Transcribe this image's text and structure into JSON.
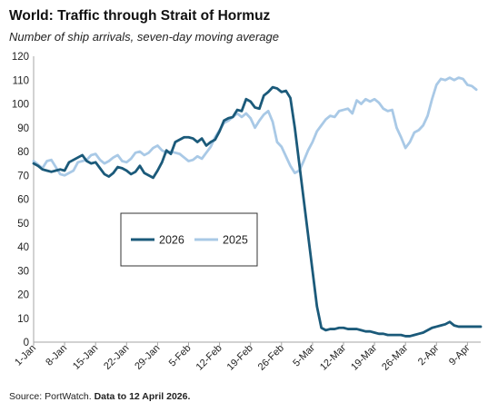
{
  "title": "World: Traffic through Strait of Hormuz",
  "subtitle": "Number of ship arrivals, seven-day moving average",
  "source": {
    "prefix": "Source: PortWatch. ",
    "bold": "Data to 12 April 2026."
  },
  "chart_data": {
    "type": "line",
    "ylim": [
      0,
      120
    ],
    "yticks": [
      0,
      10,
      20,
      30,
      40,
      50,
      60,
      70,
      80,
      90,
      100,
      110,
      120
    ],
    "grid": false,
    "legend_position": "left-middle",
    "x_ticks": [
      {
        "day": 0,
        "label": "1-Jan"
      },
      {
        "day": 7,
        "label": "8-Jan"
      },
      {
        "day": 14,
        "label": "15-Jan"
      },
      {
        "day": 21,
        "label": "22-Jan"
      },
      {
        "day": 28,
        "label": "29-Jan"
      },
      {
        "day": 35,
        "label": "5-Feb"
      },
      {
        "day": 42,
        "label": "12-Feb"
      },
      {
        "day": 49,
        "label": "19-Feb"
      },
      {
        "day": 56,
        "label": "26-Feb"
      },
      {
        "day": 63,
        "label": "5-Mar"
      },
      {
        "day": 70,
        "label": "12-Mar"
      },
      {
        "day": 77,
        "label": "19-Mar"
      },
      {
        "day": 84,
        "label": "26-Mar"
      },
      {
        "day": 91,
        "label": "2-Apr"
      },
      {
        "day": 98,
        "label": "9-Apr"
      }
    ],
    "x_max_day": 101,
    "series": [
      {
        "name": "2026",
        "color": "#1b5a7a",
        "values": [
          75,
          74,
          72.5,
          72,
          71.5,
          72,
          72.5,
          72,
          75.5,
          76.5,
          77.5,
          78.5,
          76,
          75,
          75.5,
          73,
          70.5,
          69.5,
          71,
          73.5,
          73,
          72,
          70.5,
          71.5,
          74,
          71,
          70,
          69,
          72,
          75.5,
          80.5,
          79,
          84,
          85,
          86,
          86,
          85.5,
          84,
          85.5,
          82.5,
          84,
          85,
          88.5,
          93,
          94,
          94.5,
          97.5,
          97,
          102,
          101,
          98.5,
          98,
          103.5,
          105,
          107,
          106.5,
          105,
          105.5,
          102.5,
          90,
          75,
          60,
          45,
          30,
          15,
          6,
          5,
          5.5,
          5.5,
          6,
          6,
          5.5,
          5.5,
          5.5,
          5,
          4.5,
          4.5,
          4,
          3.5,
          3.5,
          3,
          3,
          3,
          3,
          2.5,
          2.5,
          3,
          3.5,
          4,
          5,
          6,
          6.5,
          7,
          7.5,
          8.5,
          7,
          6.5,
          6.5,
          6.5,
          6.5,
          6.5,
          6.5
        ]
      },
      {
        "name": "2025",
        "color": "#a9c9e6",
        "values": [
          76,
          74.5,
          73,
          76,
          76.5,
          73.5,
          70.5,
          70,
          71,
          72,
          75.5,
          76,
          76.5,
          78.5,
          79,
          76.5,
          75,
          76,
          77.5,
          78.5,
          76,
          75.5,
          77,
          79.5,
          80,
          78.5,
          79.5,
          81.5,
          82.5,
          80.5,
          79.5,
          80,
          79.5,
          79,
          77.5,
          76,
          76.5,
          78,
          77,
          79.5,
          82,
          86,
          89,
          92,
          93,
          94.5,
          96,
          94.5,
          96,
          94,
          90,
          93,
          95.5,
          97,
          92.5,
          84,
          82,
          78,
          74,
          71,
          72,
          76,
          80.5,
          84,
          88.5,
          91,
          93.5,
          95,
          94.5,
          97,
          97.5,
          98,
          96,
          101.5,
          100,
          102,
          101,
          102,
          100.5,
          98,
          97,
          97.5,
          90,
          86,
          81.5,
          84,
          88,
          89,
          91,
          95,
          102,
          108,
          110.5,
          110,
          111,
          110,
          111,
          110.5,
          108,
          107.5,
          106
        ]
      }
    ]
  }
}
